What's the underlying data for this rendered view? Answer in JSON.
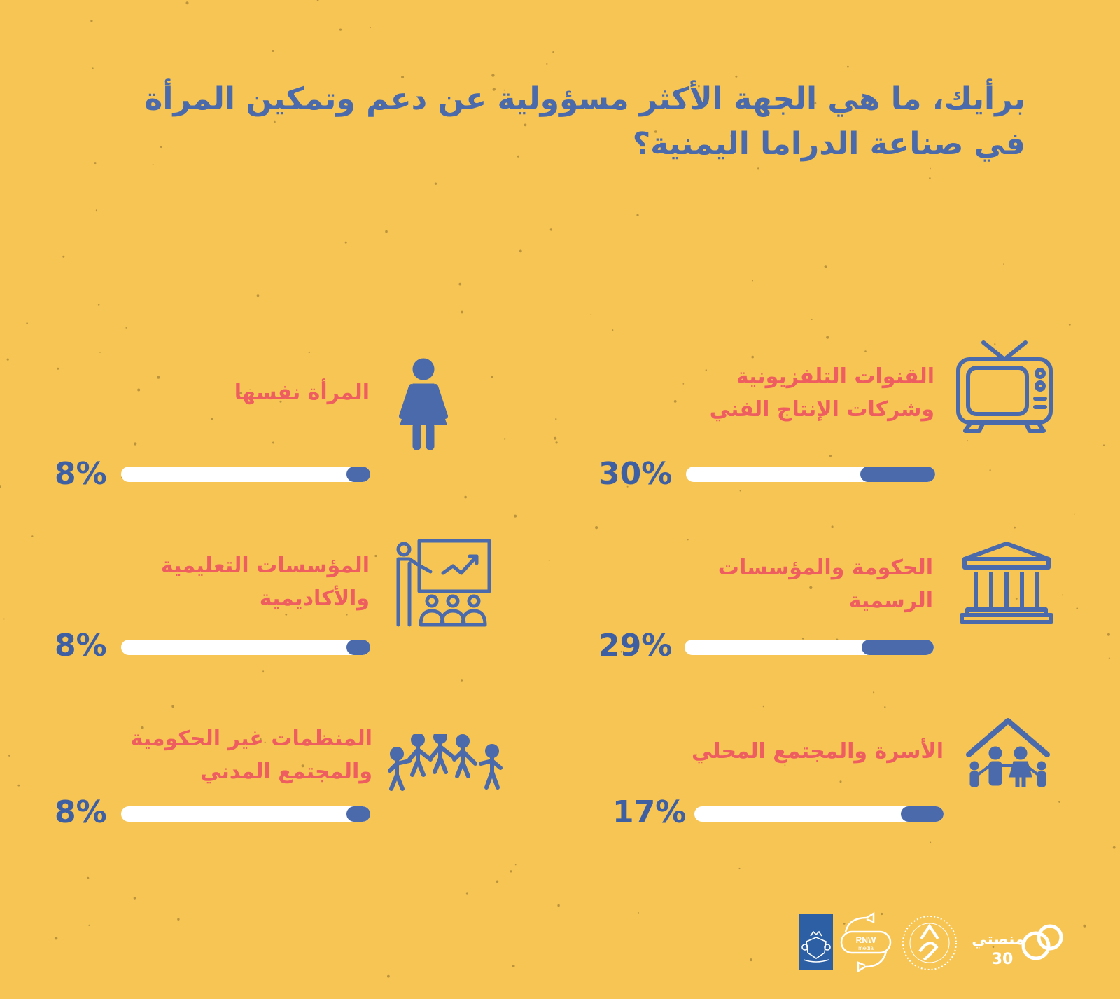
{
  "title": {
    "line1": "برأيك، ما هي الجهة الأكثر مسؤولية عن دعم وتمكين المرأة",
    "line2": "في صناعة الدراما اليمنية؟"
  },
  "colors": {
    "background": "#f7c554",
    "title": "#4a6aab",
    "label": "#ee5d60",
    "bar_fill": "#4a6aab",
    "bar_track": "#ffffff"
  },
  "chart_data": {
    "type": "bar",
    "orientation": "horizontal",
    "xlim": [
      0,
      100
    ],
    "unit": "%",
    "categories": [
      "القنوات التلفزيونية وشركات الإنتاج الفني",
      "الحكومة والمؤسسات الرسمية",
      "الأسرة والمجتمع المحلي",
      "المرأة نفسها",
      "المؤسسات التعليمية والأكاديمية",
      "المنظمات غير الحكومية والمجتمع المدني"
    ],
    "values": [
      30,
      29,
      17,
      8,
      8,
      8
    ]
  },
  "items": [
    {
      "line1": "القنوات التلفزيونية",
      "line2": "وشركات الإنتاج الفني",
      "pct": "30%",
      "icon": "tv-icon"
    },
    {
      "line1": "الحكومة والمؤسسات",
      "line2": "الرسمية",
      "pct": "29%",
      "icon": "government-building-icon"
    },
    {
      "line1": "الأسرة والمجتمع المحلي",
      "line2": "",
      "pct": "17%",
      "icon": "family-house-icon"
    },
    {
      "line1": "المرأة نفسها",
      "line2": "",
      "pct": "8%",
      "icon": "woman-icon"
    },
    {
      "line1": "المؤسسات التعليمية",
      "line2": "والأكاديمية",
      "pct": "8%",
      "icon": "teacher-classroom-icon"
    },
    {
      "line1": "المنظمات غير الحكومية",
      "line2": "والمجتمع المدني",
      "pct": "8%",
      "icon": "people-chain-icon"
    }
  ],
  "logos": {
    "manasati_text": "منصتي",
    "manasati_number": "30",
    "rnw_text": "RNW",
    "rnw_sub": "media"
  }
}
